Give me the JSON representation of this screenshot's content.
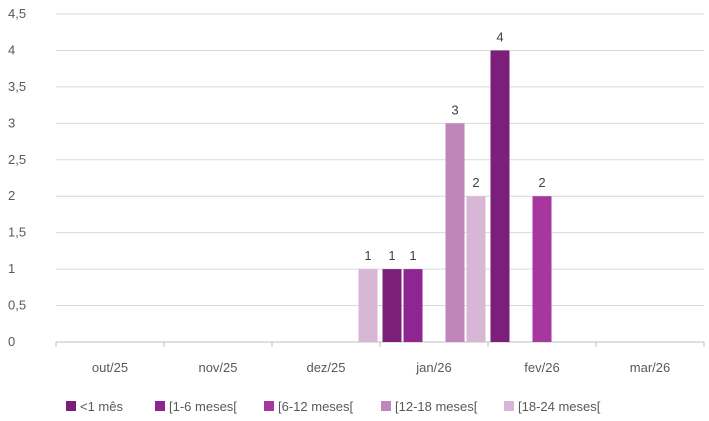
{
  "chart_data": {
    "type": "bar",
    "title": "",
    "xlabel": "",
    "ylabel": "",
    "ylim": [
      0,
      4.5
    ],
    "yticks": [
      "0",
      "0,5",
      "1",
      "1,5",
      "2",
      "2,5",
      "3",
      "3,5",
      "4",
      "4,5"
    ],
    "categories": [
      "out/25",
      "nov/25",
      "dez/25",
      "jan/26",
      "fev/26",
      "mar/26"
    ],
    "grid": true,
    "legend_position": "bottom",
    "series": [
      {
        "name": "<1 mês",
        "color": "#7B1F7A",
        "values": [
          0,
          0,
          0,
          1,
          4,
          0
        ]
      },
      {
        "name": "[1-6 meses[",
        "color": "#8E2591",
        "values": [
          0,
          0,
          0,
          1,
          0,
          0
        ]
      },
      {
        "name": "[6-12 meses[",
        "color": "#A8369F",
        "values": [
          0,
          0,
          0,
          0,
          2,
          0
        ]
      },
      {
        "name": "[12-18 meses[",
        "color": "#BE86BB",
        "values": [
          0,
          0,
          0,
          3,
          0,
          0
        ]
      },
      {
        "name": "[18-24 meses[",
        "color": "#D8B6D6",
        "values": [
          0,
          0,
          1,
          2,
          0,
          0
        ]
      }
    ],
    "data_labels": [
      {
        "series": 4,
        "category": 2,
        "text": "1"
      },
      {
        "series": 0,
        "category": 3,
        "text": "1"
      },
      {
        "series": 1,
        "category": 3,
        "text": "1"
      },
      {
        "series": 3,
        "category": 3,
        "text": "3"
      },
      {
        "series": 4,
        "category": 3,
        "text": "2"
      },
      {
        "series": 0,
        "category": 4,
        "text": "4"
      },
      {
        "series": 2,
        "category": 4,
        "text": "2"
      }
    ]
  }
}
